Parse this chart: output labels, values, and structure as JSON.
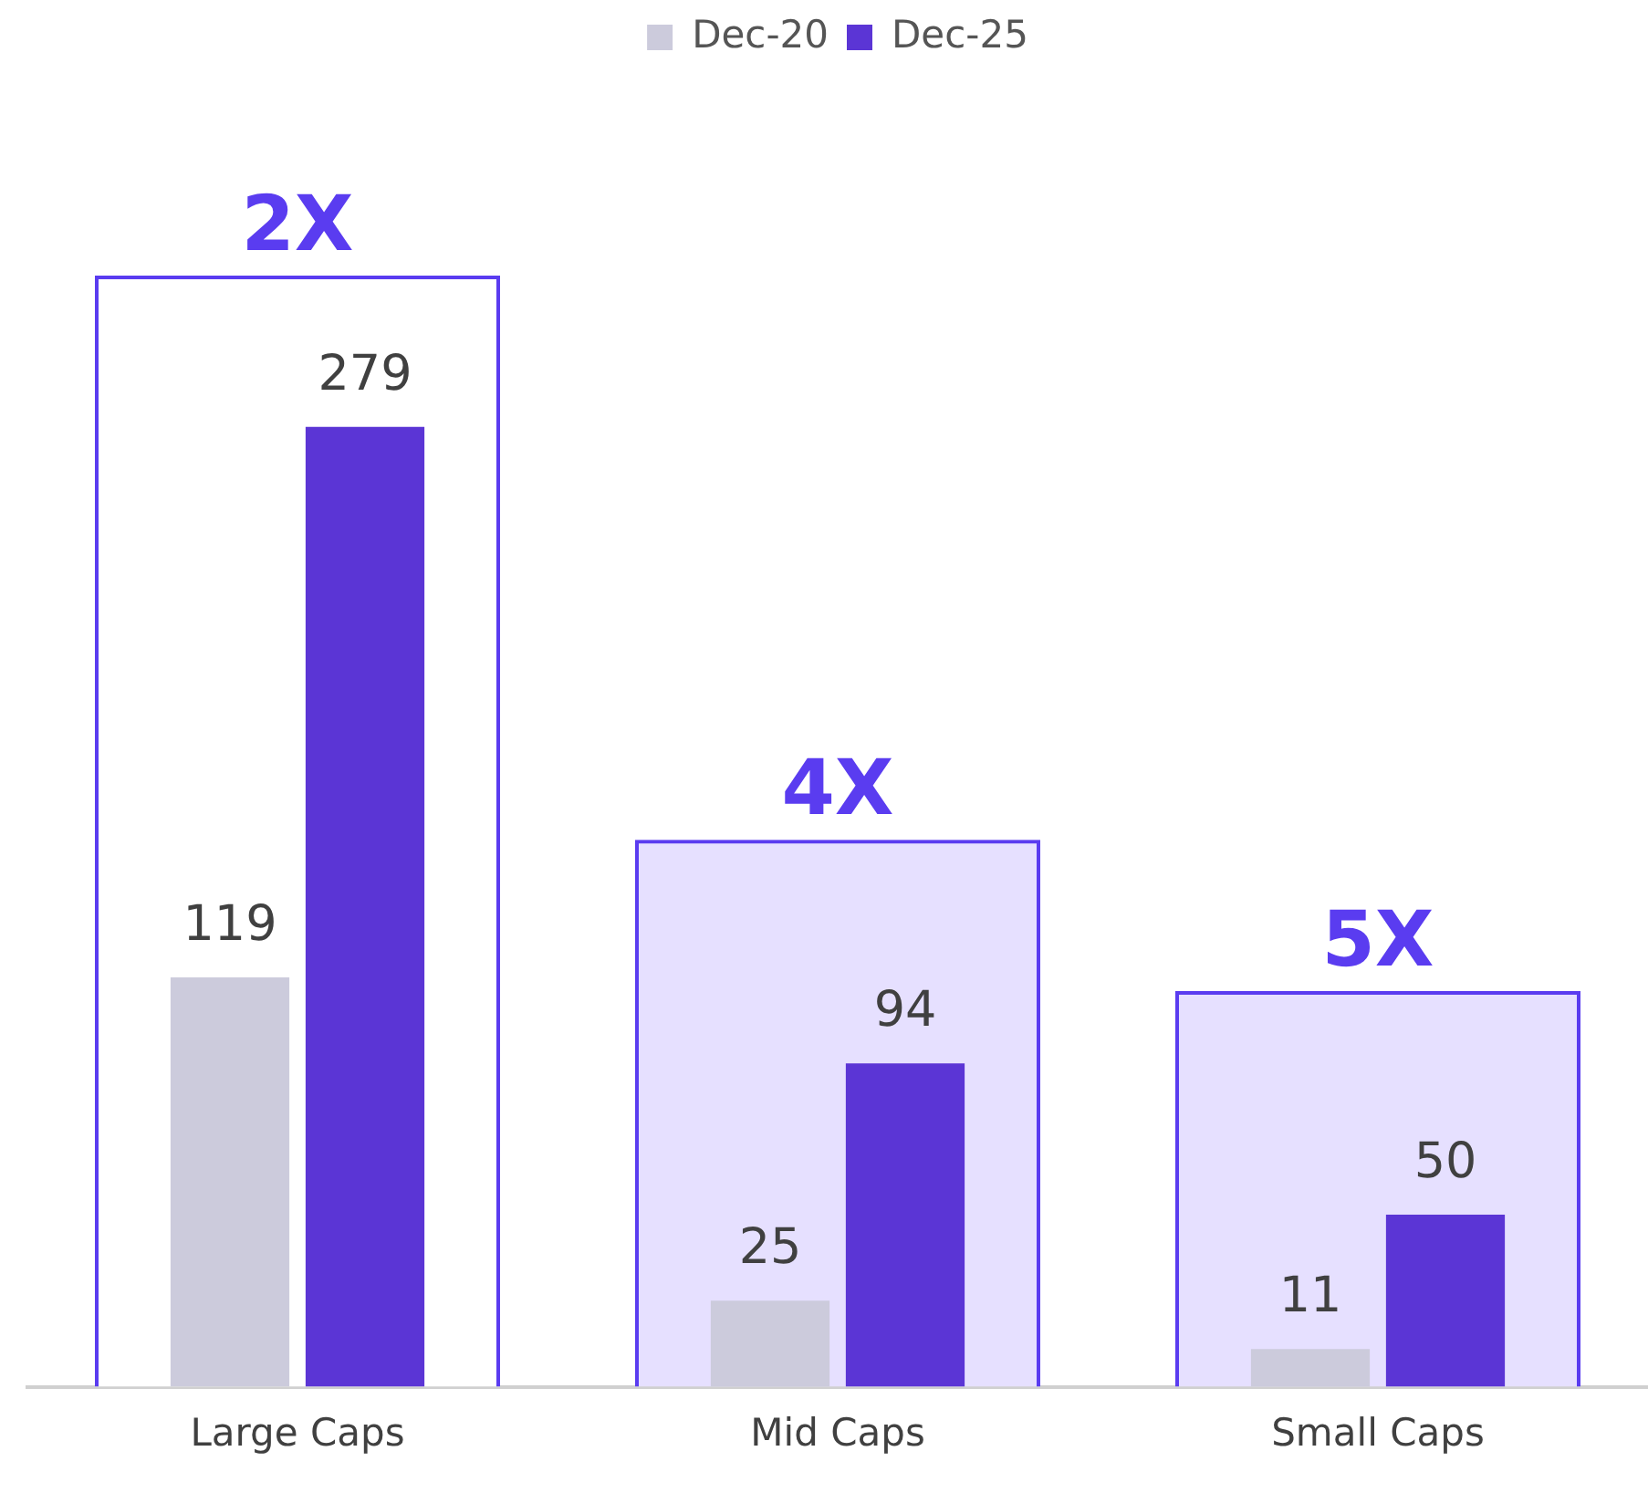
{
  "chart_data": {
    "type": "bar",
    "categories": [
      "Large Caps",
      "Mid Caps",
      "Small Caps"
    ],
    "series": [
      {
        "name": "Dec-20",
        "color": "#cccbdc",
        "values": [
          119,
          25,
          11
        ]
      },
      {
        "name": "Dec-25",
        "color": "#5b35d5",
        "values": [
          279,
          94,
          50
        ]
      },
      {
        "type": "bar",
        "colors": [
          "#ffffff",
          "#e6e0ff",
          "#e6e0ff"
        ],
        "values": [
          323,
          159,
          115
        ],
        "value_labels": [
          null,
          null,
          null
        ]
      },
      {
        "type": "bar",
        "color": "#5a3cf0",
        "values": [
          323,
          159,
          115
        ],
        "value_labels": [
          null,
          null,
          null
        ]
      }
    ],
    "data_labels": true,
    "legend": "top",
    "grid": false,
    "tick_labels": "x",
    "annotations": [
      {
        "text": "2X",
        "x": "Large Caps",
        "y": 323
      },
      {
        "text": "4X",
        "x": "Mid Caps",
        "y": 159
      },
      {
        "text": "5X",
        "x": "Small Caps",
        "y": 115
      }
    ]
  }
}
